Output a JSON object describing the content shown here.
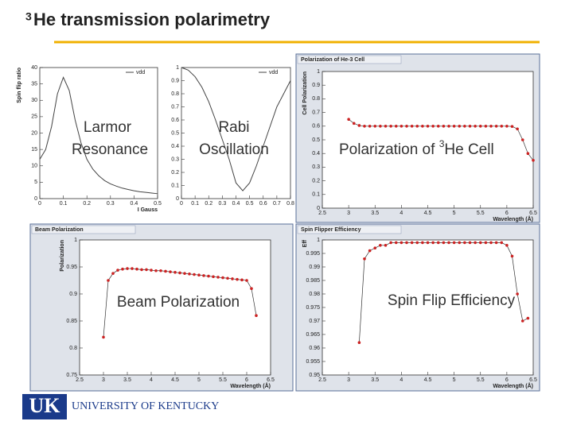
{
  "slide": {
    "title_sup": "3",
    "title": "He transmission polarimetry",
    "overlays": [
      "Larmor",
      "Resonance",
      "Rabi",
      "Oscillation",
      "Polarization of ",
      "3",
      "He Cell",
      "Beam Polarization",
      "Spin Flip Efficiency"
    ],
    "logo": "UK",
    "university": "UNIVERSITY OF KENTUCKY"
  },
  "chart_data": [
    {
      "type": "line",
      "xlabel": "I Gauss",
      "ylabel": "Spin flip ratio",
      "xlim": [
        0,
        0.5
      ],
      "xticks": [
        0,
        0.1,
        0.2,
        0.3,
        0.4,
        0.5
      ],
      "ylim": [
        0,
        40
      ],
      "yticks": [
        0,
        5,
        10,
        15,
        20,
        25,
        30,
        35,
        40
      ],
      "x": [
        0,
        0.025,
        0.05,
        0.075,
        0.1,
        0.125,
        0.15,
        0.175,
        0.2,
        0.225,
        0.25,
        0.275,
        0.3,
        0.325,
        0.35,
        0.375,
        0.4,
        0.425,
        0.45,
        0.475,
        0.5
      ],
      "series": [
        {
          "name": "vdd",
          "color": "#444444",
          "values": [
            12,
            15,
            22,
            32,
            37,
            33,
            24,
            17,
            12,
            9,
            7,
            5.5,
            4.5,
            3.8,
            3.2,
            2.8,
            2.4,
            2.1,
            1.9,
            1.7,
            1.5
          ]
        }
      ]
    },
    {
      "type": "line",
      "xlim": [
        0,
        0.8
      ],
      "xticks": [
        0,
        0.1,
        0.2,
        0.3,
        0.4,
        0.5,
        0.6,
        0.7,
        0.8
      ],
      "ylim": [
        0,
        1
      ],
      "yticks": [
        0,
        0.1,
        0.2,
        0.3,
        0.4,
        0.5,
        0.6,
        0.7,
        0.8,
        0.9,
        1
      ],
      "x": [
        0,
        0.05,
        0.1,
        0.15,
        0.2,
        0.25,
        0.3,
        0.35,
        0.4,
        0.45,
        0.5,
        0.55,
        0.6,
        0.65,
        0.7,
        0.75,
        0.8
      ],
      "series": [
        {
          "name": "vdd",
          "color": "#444444",
          "values": [
            1,
            0.98,
            0.93,
            0.85,
            0.74,
            0.6,
            0.45,
            0.3,
            0.12,
            0.06,
            0.12,
            0.25,
            0.4,
            0.55,
            0.7,
            0.8,
            0.9
          ]
        }
      ]
    },
    {
      "type": "line",
      "markers": true,
      "title": "Polarization of He-3 Cell",
      "xlabel": "Wavelength (Å)",
      "ylabel": "Cell Polarization",
      "xlim": [
        2.5,
        6.5
      ],
      "xticks": [
        2.5,
        3,
        3.5,
        4,
        4.5,
        5,
        5.5,
        6,
        6.5
      ],
      "ylim": [
        0,
        1
      ],
      "yticks": [
        0,
        0.1,
        0.2,
        0.3,
        0.4,
        0.5,
        0.6,
        0.7,
        0.8,
        0.9,
        1
      ],
      "x": [
        3.0,
        3.1,
        3.2,
        3.3,
        3.4,
        3.5,
        3.6,
        3.7,
        3.8,
        3.9,
        4.0,
        4.1,
        4.2,
        4.3,
        4.4,
        4.5,
        4.6,
        4.7,
        4.8,
        4.9,
        5.0,
        5.1,
        5.2,
        5.3,
        5.4,
        5.5,
        5.6,
        5.7,
        5.8,
        5.9,
        6.0,
        6.1,
        6.2,
        6.3,
        6.4,
        6.5
      ],
      "series": [
        {
          "name": "Cell Polarization",
          "color": "#cc2222",
          "values": [
            0.65,
            0.62,
            0.605,
            0.6,
            0.6,
            0.6,
            0.6,
            0.6,
            0.6,
            0.6,
            0.6,
            0.6,
            0.6,
            0.6,
            0.6,
            0.6,
            0.6,
            0.6,
            0.6,
            0.6,
            0.6,
            0.6,
            0.6,
            0.6,
            0.6,
            0.6,
            0.6,
            0.6,
            0.6,
            0.6,
            0.6,
            0.598,
            0.58,
            0.5,
            0.4,
            0.35
          ]
        }
      ]
    },
    {
      "type": "line",
      "markers": true,
      "title": "Beam Polarization",
      "xlabel": "Wavelength (Å)",
      "ylabel": "Polarization",
      "xlim": [
        2.5,
        6.5
      ],
      "xticks": [
        2.5,
        3,
        3.5,
        4,
        4.5,
        5,
        5.5,
        6,
        6.5
      ],
      "ylim": [
        0.75,
        1
      ],
      "yticks": [
        0.75,
        0.8,
        0.85,
        0.9,
        0.95,
        1
      ],
      "x": [
        3.0,
        3.1,
        3.2,
        3.3,
        3.4,
        3.5,
        3.6,
        3.7,
        3.8,
        3.9,
        4.0,
        4.1,
        4.2,
        4.3,
        4.4,
        4.5,
        4.6,
        4.7,
        4.8,
        4.9,
        5.0,
        5.1,
        5.2,
        5.3,
        5.4,
        5.5,
        5.6,
        5.7,
        5.8,
        5.9,
        6.0,
        6.1,
        6.2
      ],
      "series": [
        {
          "name": "Polarization",
          "color": "#cc2222",
          "values": [
            0.82,
            0.925,
            0.938,
            0.944,
            0.946,
            0.947,
            0.947,
            0.946,
            0.945,
            0.945,
            0.944,
            0.943,
            0.943,
            0.942,
            0.941,
            0.94,
            0.939,
            0.938,
            0.937,
            0.936,
            0.935,
            0.934,
            0.933,
            0.932,
            0.931,
            0.93,
            0.929,
            0.928,
            0.927,
            0.926,
            0.925,
            0.91,
            0.86
          ]
        }
      ]
    },
    {
      "type": "line",
      "markers": true,
      "title": "Spin Flipper Efficiency",
      "xlabel": "Wavelength (Å)",
      "ylabel": "Eff",
      "xlim": [
        2.5,
        6.5
      ],
      "xticks": [
        2.5,
        3,
        3.5,
        4,
        4.5,
        5,
        5.5,
        6,
        6.5
      ],
      "ylim": [
        0.95,
        1
      ],
      "yticks": [
        0.95,
        0.955,
        0.96,
        0.965,
        0.97,
        0.975,
        0.98,
        0.985,
        0.99,
        0.995,
        1
      ],
      "x": [
        3.2,
        3.3,
        3.4,
        3.5,
        3.6,
        3.7,
        3.8,
        3.9,
        4.0,
        4.1,
        4.2,
        4.3,
        4.4,
        4.5,
        4.6,
        4.7,
        4.8,
        4.9,
        5.0,
        5.1,
        5.2,
        5.3,
        5.4,
        5.5,
        5.6,
        5.7,
        5.8,
        5.9,
        6.0,
        6.1,
        6.2,
        6.3,
        6.4
      ],
      "series": [
        {
          "name": "Eff",
          "color": "#cc2222",
          "values": [
            0.962,
            0.993,
            0.996,
            0.997,
            0.998,
            0.998,
            0.999,
            0.999,
            0.999,
            0.999,
            0.999,
            0.999,
            0.999,
            0.999,
            0.999,
            0.999,
            0.999,
            0.999,
            0.999,
            0.999,
            0.999,
            0.999,
            0.999,
            0.999,
            0.999,
            0.999,
            0.999,
            0.999,
            0.998,
            0.994,
            0.98,
            0.97,
            0.971
          ]
        }
      ]
    }
  ]
}
